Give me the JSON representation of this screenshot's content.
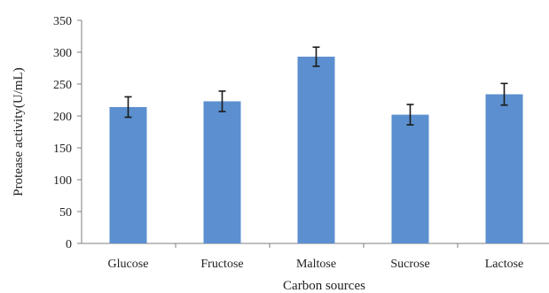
{
  "chart_data": {
    "type": "bar",
    "categories": [
      "Glucose",
      "Fructose",
      "Maltose",
      "Sucrose",
      "Lactose"
    ],
    "values": [
      214,
      223,
      293,
      202,
      234
    ],
    "errors": [
      16,
      16,
      15,
      16,
      17
    ],
    "xlabel": "Carbon sources",
    "ylabel": "Protease activity(U/mL)",
    "ylim": [
      0,
      350
    ],
    "yticks": [
      0,
      50,
      100,
      150,
      200,
      250,
      300,
      350
    ],
    "bar_color": "#5b8fcf",
    "grid": false,
    "legend": "none"
  }
}
